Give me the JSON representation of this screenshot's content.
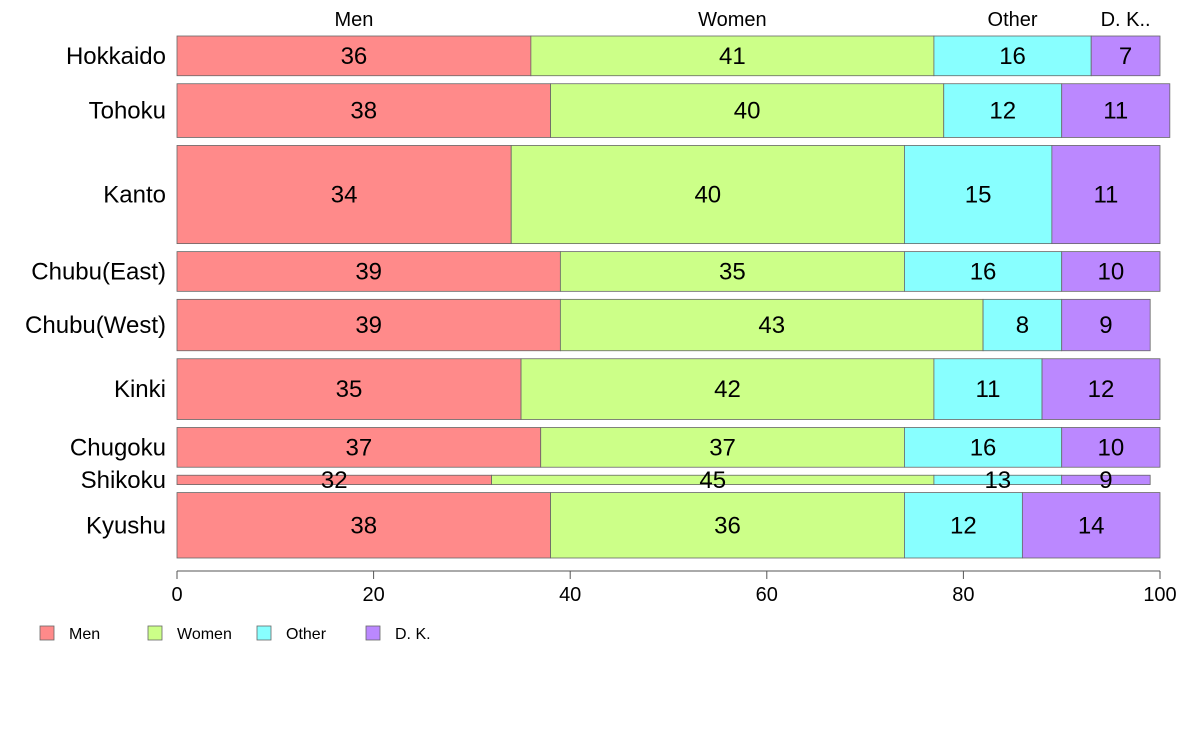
{
  "chart_data": {
    "type": "bar",
    "orientation": "horizontal",
    "stacked": true,
    "categories": [
      "Hokkaido",
      "Tohoku",
      "Kanto",
      "Chubu(East)",
      "Chubu(West)",
      "Kinki",
      "Chugoku",
      "Shikoku",
      "Kyushu"
    ],
    "series": [
      {
        "name": "Men",
        "header": "Men",
        "color": "#ff8a8a",
        "values": [
          36,
          38,
          34,
          39,
          39,
          35,
          37,
          32,
          38
        ]
      },
      {
        "name": "Women",
        "header": "Women",
        "color": "#ccff88",
        "values": [
          41,
          40,
          40,
          35,
          43,
          42,
          37,
          45,
          36
        ]
      },
      {
        "name": "Other",
        "header": "Other",
        "color": "#88ffff",
        "values": [
          16,
          12,
          15,
          16,
          8,
          11,
          16,
          13,
          12
        ]
      },
      {
        "name": "D. K.",
        "header": "D. K..",
        "color": "#bb88ff",
        "values": [
          7,
          11,
          11,
          10,
          9,
          12,
          10,
          9,
          14
        ]
      }
    ],
    "row_weights": [
      0.85,
      1.15,
      2.1,
      0.85,
      1.1,
      1.3,
      0.85,
      0.2,
      1.4
    ],
    "xlim": [
      0,
      100
    ],
    "xticks": [
      "0",
      "20",
      "40",
      "60",
      "80",
      "100"
    ],
    "grid": false,
    "legend_position": "bottom-left"
  }
}
